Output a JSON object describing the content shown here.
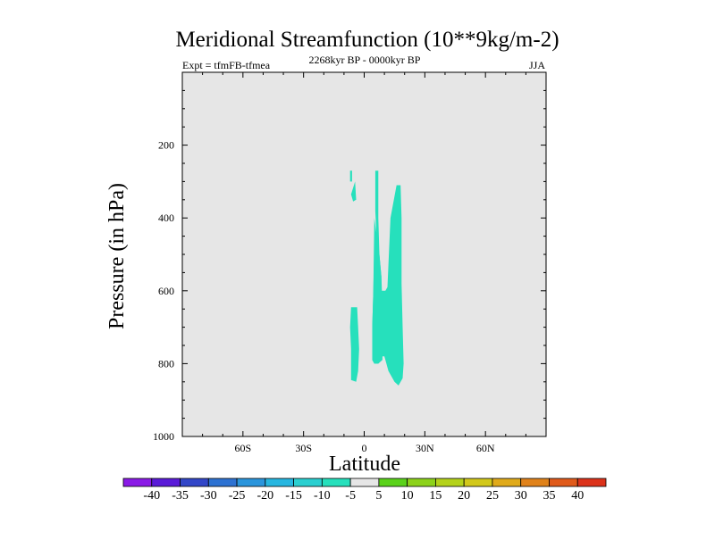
{
  "chart_data": {
    "type": "contour",
    "title": "Meridional Streamfunction (10**9kg/m-2)",
    "left_subtitle": "Expt = tfmFB-tfmea",
    "center_subtitle": "2268kyr BP - 0000kyr BP",
    "right_subtitle": "JJA",
    "xlabel": "Latitude",
    "ylabel": "Pressure (in hPa)",
    "xlim": [
      -90,
      90
    ],
    "ylim": [
      1000,
      0
    ],
    "x_ticks": [
      {
        "value": -60,
        "label": "60S"
      },
      {
        "value": -30,
        "label": "30S"
      },
      {
        "value": 0,
        "label": "0"
      },
      {
        "value": 30,
        "label": "30N"
      },
      {
        "value": 60,
        "label": "60N"
      }
    ],
    "y_ticks": [
      {
        "value": 200,
        "label": "200"
      },
      {
        "value": 400,
        "label": "400"
      },
      {
        "value": 600,
        "label": "600"
      },
      {
        "value": 800,
        "label": "800"
      },
      {
        "value": 1000,
        "label": "1000"
      }
    ],
    "background_color": "#e6e6e6",
    "contour_regions": [
      {
        "name": "region-sh-upper",
        "level": "-10 to -5",
        "color": "#26e0bc",
        "points": [
          [
            -7,
            270
          ],
          [
            -6,
            270
          ],
          [
            -6,
            300
          ],
          [
            -7,
            300
          ]
        ]
      },
      {
        "name": "region-sh-mid",
        "level": "-10 to -5",
        "color": "#26e0bc",
        "points": [
          [
            -4.5,
            300
          ],
          [
            -4,
            350
          ],
          [
            -5.5,
            355
          ],
          [
            -6.5,
            335
          ]
        ]
      },
      {
        "name": "region-sh-lower",
        "level": "-10 to -5",
        "color": "#26e0bc",
        "points": [
          [
            -6.5,
            645
          ],
          [
            -3.5,
            645
          ],
          [
            -3,
            700
          ],
          [
            -2.5,
            760
          ],
          [
            -3,
            820
          ],
          [
            -4,
            850
          ],
          [
            -6.5,
            845
          ],
          [
            -6.5,
            760
          ],
          [
            -7,
            700
          ]
        ]
      },
      {
        "name": "region-nh-main",
        "level": "-10 to -5",
        "color": "#26e0bc",
        "points": [
          [
            5.5,
            270
          ],
          [
            7,
            270
          ],
          [
            7,
            300
          ],
          [
            7,
            400
          ],
          [
            7.5,
            500
          ],
          [
            8.5,
            560
          ],
          [
            8.5,
            600
          ],
          [
            10.5,
            600
          ],
          [
            11.5,
            590
          ],
          [
            13,
            400
          ],
          [
            16,
            310
          ],
          [
            18,
            310
          ],
          [
            18.5,
            400
          ],
          [
            18.5,
            500
          ],
          [
            18.5,
            580
          ],
          [
            19,
            700
          ],
          [
            19.5,
            800
          ],
          [
            19,
            840
          ],
          [
            17,
            860
          ],
          [
            15,
            850
          ],
          [
            12,
            820
          ],
          [
            10,
            780
          ],
          [
            9,
            780
          ],
          [
            9,
            790
          ],
          [
            7,
            800
          ],
          [
            5,
            800
          ],
          [
            4,
            790
          ],
          [
            4,
            700
          ],
          [
            4.5,
            600
          ],
          [
            5,
            400
          ],
          [
            6,
            440
          ],
          [
            5.5,
            380
          ],
          [
            5.5,
            300
          ]
        ]
      },
      {
        "name": "region-nh-left",
        "level": "-10 to -5",
        "color": "#26e0bc",
        "points": [
          [
            6,
            440
          ],
          [
            7.5,
            500
          ],
          [
            8.5,
            560
          ],
          [
            9,
            640
          ],
          [
            9,
            700
          ],
          [
            9,
            780
          ],
          [
            7,
            800
          ],
          [
            5,
            800
          ],
          [
            4,
            790
          ],
          [
            4,
            700
          ],
          [
            4.5,
            600
          ],
          [
            5,
            480
          ]
        ]
      }
    ],
    "colorbar": {
      "labels": [
        "-40",
        "-35",
        "-30",
        "-25",
        "-20",
        "-15",
        "-10",
        "-5",
        "5",
        "10",
        "15",
        "20",
        "25",
        "30",
        "35",
        "40"
      ],
      "colors": [
        "#8a1ae6",
        "#5a1ad8",
        "#3246c8",
        "#2d72d2",
        "#2a95dc",
        "#26b6e0",
        "#2acfd0",
        "#26e0bc",
        "#e6e6e6",
        "#5ad21a",
        "#8cd21a",
        "#b4d21a",
        "#d2c81a",
        "#e0aa1a",
        "#e0821a",
        "#e05a1a",
        "#dc321a"
      ]
    }
  }
}
